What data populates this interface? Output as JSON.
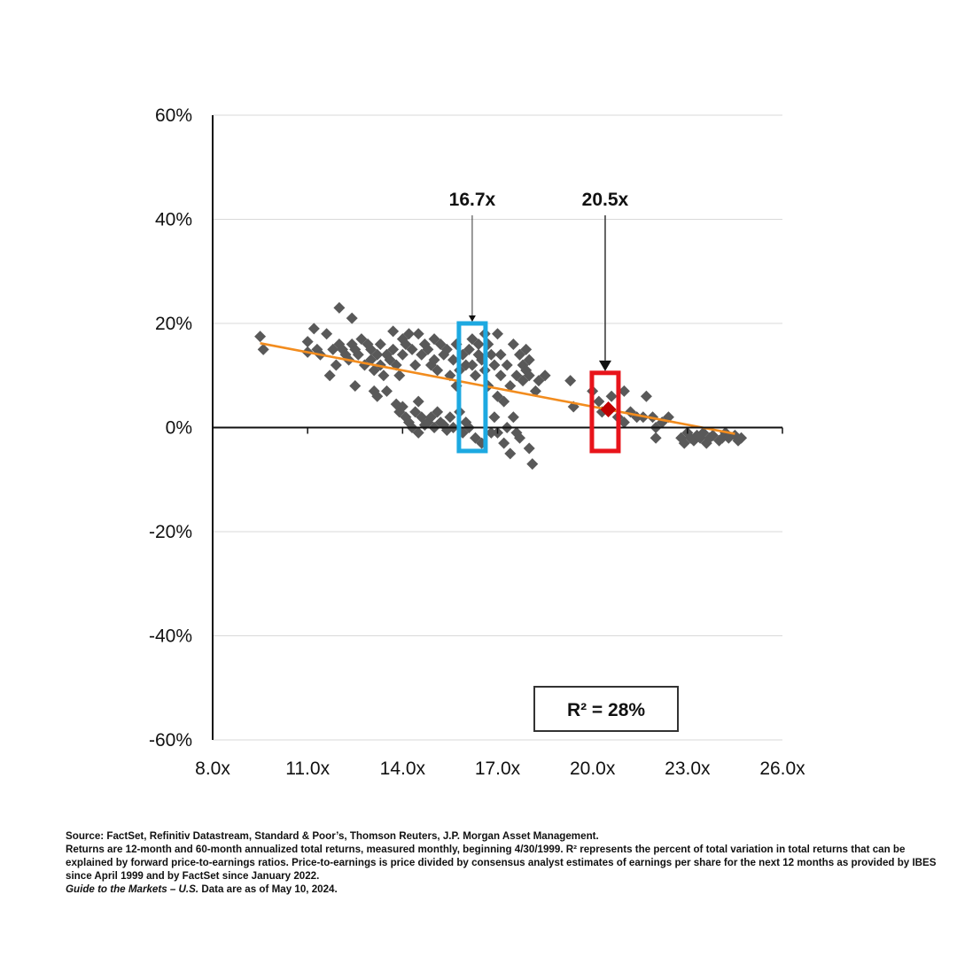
{
  "chart_data": {
    "type": "scatter",
    "title": "",
    "xlabel": "",
    "ylabel": "",
    "xlim": [
      8,
      26
    ],
    "ylim": [
      -60,
      60
    ],
    "x_ticks": [
      8,
      11,
      14,
      17,
      20,
      23,
      26
    ],
    "x_tick_labels": [
      "8.0x",
      "11.0x",
      "14.0x",
      "17.0x",
      "20.0x",
      "23.0x",
      "26.0x"
    ],
    "y_ticks": [
      60,
      40,
      20,
      0,
      -20,
      -40,
      -60
    ],
    "y_tick_labels": [
      "60%",
      "40%",
      "20%",
      "0%",
      "-20%",
      "-40%",
      "-60%"
    ],
    "grid": "horizontal",
    "marker_color": "#595959",
    "trendline": {
      "x": [
        9.5,
        24.5
      ],
      "y": [
        16.2,
        -1.2
      ],
      "color": "#F28C1E"
    },
    "annotation_r2": "R²  = 28%",
    "callouts": [
      {
        "label": "16.7x",
        "x": 16.2,
        "y_low": -4.5,
        "y_high": 20,
        "color": "#1DA9E1"
      },
      {
        "label": "20.5x",
        "x": 20.4,
        "y_low": -4.5,
        "y_high": 10.5,
        "color": "#E8141B"
      }
    ],
    "highlight_point": {
      "x": 20.5,
      "y": 3.5,
      "color": "#C00000"
    },
    "points": [
      [
        9.5,
        17.5
      ],
      [
        9.6,
        15
      ],
      [
        11,
        16.5
      ],
      [
        11,
        14.5
      ],
      [
        11.2,
        19
      ],
      [
        11.3,
        15
      ],
      [
        11.4,
        14
      ],
      [
        11.6,
        18
      ],
      [
        11.7,
        10
      ],
      [
        11.8,
        15
      ],
      [
        11.9,
        12
      ],
      [
        12,
        23
      ],
      [
        12,
        16
      ],
      [
        12.1,
        15
      ],
      [
        12.2,
        14
      ],
      [
        12.3,
        13
      ],
      [
        12.4,
        21
      ],
      [
        12.4,
        16
      ],
      [
        12.5,
        15
      ],
      [
        12.5,
        8
      ],
      [
        12.6,
        14
      ],
      [
        12.7,
        17
      ],
      [
        12.8,
        12
      ],
      [
        12.9,
        16
      ],
      [
        13,
        15
      ],
      [
        13,
        13
      ],
      [
        13.1,
        11
      ],
      [
        13.1,
        7
      ],
      [
        13.2,
        14
      ],
      [
        13.2,
        6
      ],
      [
        13.3,
        16
      ],
      [
        13.3,
        12
      ],
      [
        13.4,
        10
      ],
      [
        13.5,
        14
      ],
      [
        13.5,
        7
      ],
      [
        13.6,
        13
      ],
      [
        13.7,
        18.5
      ],
      [
        13.7,
        15
      ],
      [
        13.8,
        12
      ],
      [
        13.8,
        4.5
      ],
      [
        13.9,
        3
      ],
      [
        13.9,
        10
      ],
      [
        14,
        17
      ],
      [
        14,
        14
      ],
      [
        14,
        4
      ],
      [
        14.1,
        2
      ],
      [
        14.1,
        16
      ],
      [
        14.2,
        1
      ],
      [
        14.2,
        18
      ],
      [
        14.3,
        15
      ],
      [
        14.3,
        0
      ],
      [
        14.4,
        12
      ],
      [
        14.4,
        3
      ],
      [
        14.5,
        18
      ],
      [
        14.5,
        -1
      ],
      [
        14.5,
        5
      ],
      [
        14.6,
        14
      ],
      [
        14.6,
        2
      ],
      [
        14.7,
        16
      ],
      [
        14.7,
        0.5
      ],
      [
        14.8,
        15
      ],
      [
        14.8,
        1
      ],
      [
        14.9,
        12
      ],
      [
        14.9,
        2
      ],
      [
        15,
        17
      ],
      [
        15,
        0
      ],
      [
        15,
        13
      ],
      [
        15.1,
        3
      ],
      [
        15.1,
        11
      ],
      [
        15.2,
        16
      ],
      [
        15.2,
        1
      ],
      [
        15.3,
        14
      ],
      [
        15.3,
        0.5
      ],
      [
        15.4,
        15
      ],
      [
        15.4,
        -0.5
      ],
      [
        15.5,
        10
      ],
      [
        15.5,
        2
      ],
      [
        15.6,
        13
      ],
      [
        15.6,
        0
      ],
      [
        15.7,
        8
      ],
      [
        15.7,
        16
      ],
      [
        15.8,
        3
      ],
      [
        15.8,
        11
      ],
      [
        15.9,
        -1
      ],
      [
        15.9,
        14
      ],
      [
        16,
        1
      ],
      [
        16,
        12
      ],
      [
        16.1,
        15
      ],
      [
        16.1,
        0
      ],
      [
        16.2,
        17
      ],
      [
        16.2,
        12
      ],
      [
        16.3,
        10
      ],
      [
        16.3,
        -2
      ],
      [
        16.4,
        16
      ],
      [
        16.4,
        14
      ],
      [
        16.5,
        13
      ],
      [
        16.5,
        -3
      ],
      [
        16.6,
        18
      ],
      [
        16.6,
        11
      ],
      [
        16.7,
        16
      ],
      [
        16.7,
        8
      ],
      [
        16.8,
        14
      ],
      [
        16.8,
        -1
      ],
      [
        16.9,
        12
      ],
      [
        16.9,
        2
      ],
      [
        17,
        18
      ],
      [
        17,
        6
      ],
      [
        17,
        -1
      ],
      [
        17.1,
        10
      ],
      [
        17.1,
        14
      ],
      [
        17.2,
        5
      ],
      [
        17.2,
        -3
      ],
      [
        17.3,
        12
      ],
      [
        17.3,
        0
      ],
      [
        17.4,
        8
      ],
      [
        17.4,
        -5
      ],
      [
        17.5,
        16
      ],
      [
        17.5,
        2
      ],
      [
        17.6,
        10
      ],
      [
        17.6,
        -1
      ],
      [
        17.7,
        14
      ],
      [
        17.7,
        -2
      ],
      [
        17.8,
        12
      ],
      [
        17.8,
        9
      ],
      [
        17.9,
        15
      ],
      [
        17.9,
        11
      ],
      [
        18,
        10
      ],
      [
        18,
        -4
      ],
      [
        18,
        13
      ],
      [
        18.1,
        -7
      ],
      [
        18.2,
        7
      ],
      [
        18.3,
        9
      ],
      [
        18.5,
        10
      ],
      [
        19.3,
        9
      ],
      [
        19.4,
        4
      ],
      [
        20,
        7
      ],
      [
        20.2,
        5
      ],
      [
        20.3,
        3
      ],
      [
        20.6,
        6
      ],
      [
        20.8,
        2
      ],
      [
        21,
        1
      ],
      [
        21,
        7
      ],
      [
        21.2,
        3
      ],
      [
        21.4,
        2
      ],
      [
        21.6,
        2
      ],
      [
        21.7,
        6
      ],
      [
        21.9,
        2
      ],
      [
        22,
        0
      ],
      [
        22,
        -2
      ],
      [
        22.2,
        1
      ],
      [
        22.4,
        2
      ],
      [
        22.8,
        -2
      ],
      [
        22.9,
        -3
      ],
      [
        23,
        -1
      ],
      [
        23.1,
        -2
      ],
      [
        23.2,
        -2.5
      ],
      [
        23.3,
        -1.5
      ],
      [
        23.4,
        -2
      ],
      [
        23.5,
        -1
      ],
      [
        23.6,
        -3
      ],
      [
        23.7,
        -2
      ],
      [
        23.8,
        -1.5
      ],
      [
        24,
        -2.5
      ],
      [
        24.1,
        -2
      ],
      [
        24.2,
        -1
      ],
      [
        24.3,
        -2
      ],
      [
        24.5,
        -1.5
      ],
      [
        24.6,
        -2.5
      ],
      [
        24.7,
        -2
      ]
    ]
  },
  "footnotes": {
    "source": "Source: FactSet, Refinitiv Datastream, Standard & Poor’s, Thomson Reuters, J.P. Morgan Asset Management.",
    "returns_note": "Returns are 12-month and 60-month annualized total returns, measured monthly, beginning 4/30/1999. R² represents the percent of total variation in total returns that can be explained by forward price-to-earnings ratios. Price-to-earnings is price divided by consensus analyst estimates of earnings per share for the next 12 months as provided by IBES since April 1999 and by FactSet since January 2022.",
    "guide_title": "Guide to the Markets – U.S.",
    "data_date": " Data are as of May 10, 2024."
  }
}
